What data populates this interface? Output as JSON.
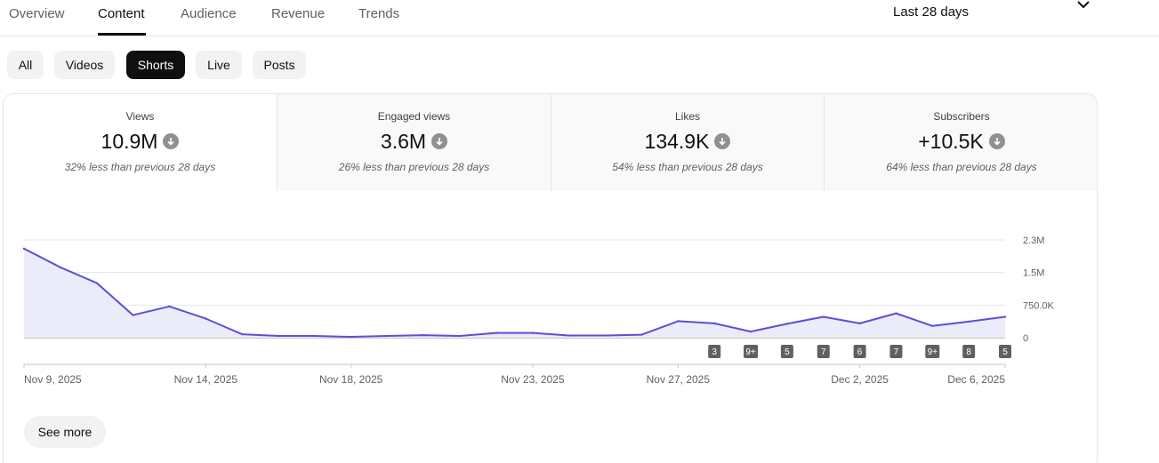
{
  "nav": {
    "tabs": [
      {
        "label": "Overview"
      },
      {
        "label": "Content"
      },
      {
        "label": "Audience"
      },
      {
        "label": "Revenue"
      },
      {
        "label": "Trends"
      }
    ],
    "active_tab": "Content",
    "period": "Last 28 days",
    "period_icon": "chevron-down-icon"
  },
  "chips": [
    {
      "label": "All"
    },
    {
      "label": "Videos"
    },
    {
      "label": "Shorts"
    },
    {
      "label": "Live"
    },
    {
      "label": "Posts"
    }
  ],
  "active_chip": "Shorts",
  "metrics": [
    {
      "label": "Views",
      "value": "10.9M",
      "sub": "32% less than previous 28 days",
      "trend_icon": "arrow-down-icon"
    },
    {
      "label": "Engaged views",
      "value": "3.6M",
      "sub": "26% less than previous 28 days",
      "trend_icon": "arrow-down-icon"
    },
    {
      "label": "Likes",
      "value": "134.9K",
      "sub": "54% less than previous 28 days",
      "trend_icon": "arrow-down-icon"
    },
    {
      "label": "Subscribers",
      "value": "+10.5K",
      "sub": "64% less than previous 28 days",
      "trend_icon": "arrow-down-icon"
    }
  ],
  "chart_data": {
    "type": "area",
    "series": [
      {
        "values": [
          2050000,
          1620000,
          1260000,
          520000,
          720000,
          440000,
          80000,
          40000,
          40000,
          20000,
          40000,
          60000,
          40000,
          110000,
          110000,
          50000,
          50000,
          70000,
          380000,
          330000,
          140000,
          320000,
          480000,
          330000,
          560000,
          270000,
          370000,
          480000
        ]
      }
    ],
    "x": [
      "Nov 9, 2025",
      "Nov 10, 2025",
      "Nov 11, 2025",
      "Nov 12, 2025",
      "Nov 13, 2025",
      "Nov 14, 2025",
      "Nov 15, 2025",
      "Nov 16, 2025",
      "Nov 17, 2025",
      "Nov 18, 2025",
      "Nov 19, 2025",
      "Nov 20, 2025",
      "Nov 21, 2025",
      "Nov 22, 2025",
      "Nov 23, 2025",
      "Nov 24, 2025",
      "Nov 25, 2025",
      "Nov 26, 2025",
      "Nov 27, 2025",
      "Nov 28, 2025",
      "Nov 29, 2025",
      "Nov 30, 2025",
      "Dec 1, 2025",
      "Dec 2, 2025",
      "Dec 3, 2025",
      "Dec 4, 2025",
      "Dec 5, 2025",
      "Dec 6, 2025"
    ],
    "x_tick_labels": [
      {
        "label": "Nov 9, 2025",
        "x": "Nov 9, 2025"
      },
      {
        "label": "Nov 14, 2025",
        "x": "Nov 14, 2025"
      },
      {
        "label": "Nov 18, 2025",
        "x": "Nov 18, 2025"
      },
      {
        "label": "Nov 23, 2025",
        "x": "Nov 23, 2025"
      },
      {
        "label": "Nov 27, 2025",
        "x": "Nov 27, 2025"
      },
      {
        "label": "Dec 2, 2025",
        "x": "Dec 2, 2025"
      },
      {
        "label": "Dec 6, 2025",
        "x": "Dec 6, 2025"
      }
    ],
    "y_ticks": [
      {
        "label": "0",
        "value": 0
      },
      {
        "label": "750.0K",
        "value": 750000
      },
      {
        "label": "1.5M",
        "value": 1500000
      },
      {
        "label": "2.3M",
        "value": 2250000
      }
    ],
    "ylim": [
      0,
      2250000
    ],
    "grid": true,
    "line_color": "#5b50d6",
    "fill_color": "#ecebfa",
    "upload_markers": [
      {
        "x": "Nov 28, 2025",
        "label": "3"
      },
      {
        "x": "Nov 29, 2025",
        "label": "9+"
      },
      {
        "x": "Nov 30, 2025",
        "label": "5"
      },
      {
        "x": "Dec 1, 2025",
        "label": "7"
      },
      {
        "x": "Dec 2, 2025",
        "label": "6"
      },
      {
        "x": "Dec 3, 2025",
        "label": "7"
      },
      {
        "x": "Dec 4, 2025",
        "label": "9+"
      },
      {
        "x": "Dec 5, 2025",
        "label": "8"
      },
      {
        "x": "Dec 6, 2025",
        "label": "5"
      }
    ]
  },
  "see_more_label": "See more"
}
